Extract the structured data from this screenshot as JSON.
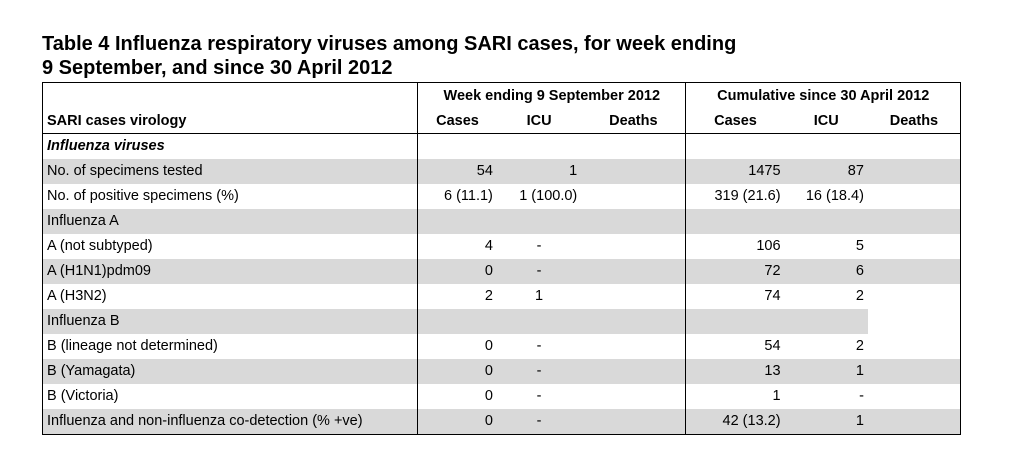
{
  "title": {
    "line1": "Table 4 Influenza respiratory viruses among SARI cases, for week ending",
    "line2": "9 September, and since 30 April 2012"
  },
  "header": {
    "row_label": "SARI cases virology",
    "group_week": "Week ending 9 September  2012",
    "group_cumulative": "Cumulative since 30 April 2012",
    "cols": [
      "Cases",
      "ICU",
      "Deaths",
      "Cases",
      "ICU",
      "Deaths"
    ]
  },
  "section": "Influenza viruses",
  "rows": [
    {
      "label": "No. of specimens tested",
      "wk_cases": "54",
      "wk_icu": "1",
      "wk_deaths": "",
      "cu_cases": "1475",
      "cu_icu": "87",
      "cu_deaths": ""
    },
    {
      "label": "No. of positive specimens (%)",
      "wk_cases": "6 (11.1)",
      "wk_icu": "1 (100.0)",
      "wk_deaths": "",
      "cu_cases": "319 (21.6)",
      "cu_icu": "16 (18.4)",
      "cu_deaths": ""
    },
    {
      "label": "Influenza A",
      "wk_cases": "",
      "wk_icu": "",
      "wk_deaths": "",
      "cu_cases": "",
      "cu_icu": "",
      "cu_deaths": ""
    },
    {
      "label": "A (not subtyped)",
      "wk_cases": "4",
      "wk_icu": "-",
      "wk_deaths": "",
      "cu_cases": "106",
      "cu_icu": "5",
      "cu_deaths": ""
    },
    {
      "label": "A (H1N1)pdm09",
      "wk_cases": "0",
      "wk_icu": "-",
      "wk_deaths": "",
      "cu_cases": "72",
      "cu_icu": "6",
      "cu_deaths": ""
    },
    {
      "label": "A (H3N2)",
      "wk_cases": "2",
      "wk_icu": "1",
      "wk_deaths": "",
      "cu_cases": "74",
      "cu_icu": "2",
      "cu_deaths": ""
    },
    {
      "label": "Influenza B",
      "wk_cases": "",
      "wk_icu": "",
      "wk_deaths": "",
      "cu_cases": "",
      "cu_icu": "",
      "cu_deaths": ""
    },
    {
      "label": "B (lineage not determined)",
      "wk_cases": "0",
      "wk_icu": "-",
      "wk_deaths": "",
      "cu_cases": "54",
      "cu_icu": "2",
      "cu_deaths": ""
    },
    {
      "label": "B (Yamagata)",
      "wk_cases": "0",
      "wk_icu": "-",
      "wk_deaths": "",
      "cu_cases": "13",
      "cu_icu": "1",
      "cu_deaths": ""
    },
    {
      "label": "B (Victoria)",
      "wk_cases": "0",
      "wk_icu": "-",
      "wk_deaths": "",
      "cu_cases": "1",
      "cu_icu": "-",
      "cu_deaths": ""
    },
    {
      "label": "Influenza and non-influenza co-detection (% +ve)",
      "wk_cases": "0",
      "wk_icu": "-",
      "wk_deaths": "",
      "cu_cases": "42 (13.2)",
      "cu_icu": "1",
      "cu_deaths": ""
    }
  ],
  "colors": {
    "shade": "#d9d9d9",
    "border": "#000000",
    "text": "#000000"
  }
}
